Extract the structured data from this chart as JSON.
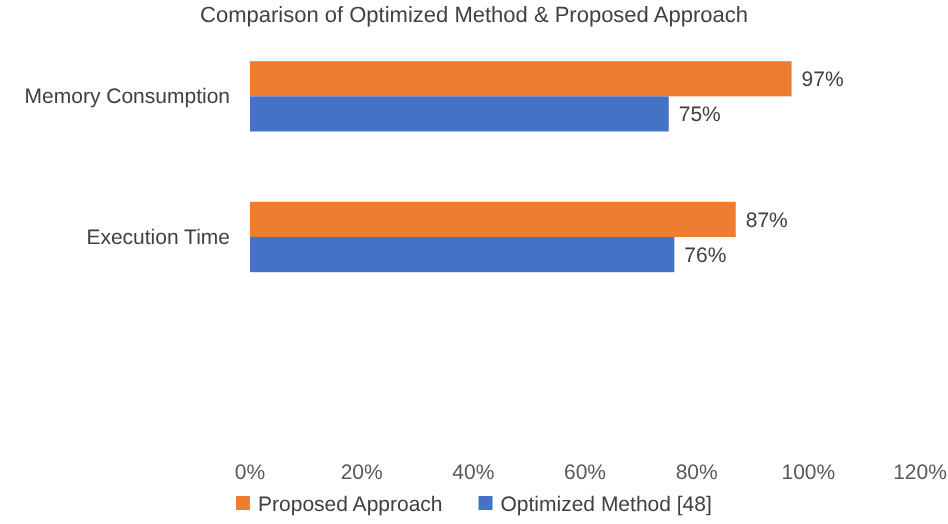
{
  "chart_data": {
    "type": "bar",
    "orientation": "horizontal",
    "title": "Comparison of Optimized Method & Proposed Approach",
    "categories": [
      "Memory Consumption",
      "Execution Time",
      null
    ],
    "series": [
      {
        "name": "Proposed Approach",
        "color": "#ed7d31",
        "values": [
          97,
          87,
          null
        ]
      },
      {
        "name": "Optimized Method [48]",
        "color": "#4472c4",
        "values": [
          75,
          76,
          null
        ]
      }
    ],
    "xlim": [
      0,
      120
    ],
    "xticks": [
      {
        "value": 0,
        "label": "0%"
      },
      {
        "value": 20,
        "label": "20%"
      },
      {
        "value": 40,
        "label": "40%"
      },
      {
        "value": 60,
        "label": "60%"
      },
      {
        "value": 80,
        "label": "80%"
      },
      {
        "value": 100,
        "label": "100%"
      },
      {
        "value": 120,
        "label": "120%"
      }
    ],
    "value_labels": [
      [
        "97%",
        "87%",
        null
      ],
      [
        "75%",
        "76%",
        null
      ]
    ],
    "legend": "bottom",
    "grid": false
  }
}
